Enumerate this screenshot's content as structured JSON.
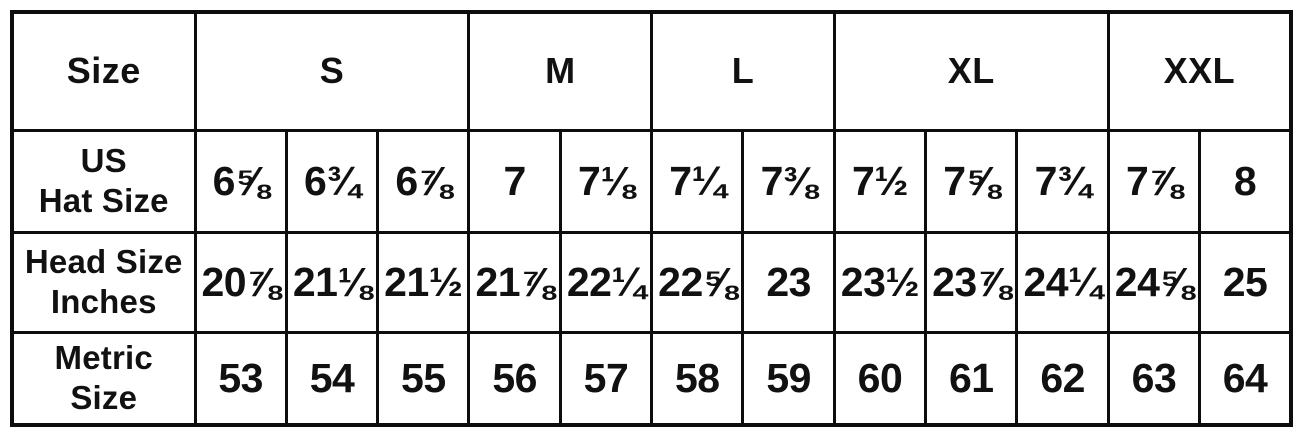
{
  "chart_data": {
    "type": "table",
    "corner_label": "Size",
    "size_groups": [
      {
        "label": "S",
        "span": 3
      },
      {
        "label": "M",
        "span": 2
      },
      {
        "label": "L",
        "span": 2
      },
      {
        "label": "XL",
        "span": 3
      },
      {
        "label": "XXL",
        "span": 2
      }
    ],
    "rows": [
      {
        "label": "US\nHat Size",
        "values": [
          "6⅝",
          "6¾",
          "6⅞",
          "7",
          "7⅛",
          "7¼",
          "7⅜",
          "7½",
          "7⅝",
          "7¾",
          "7⅞",
          "8"
        ]
      },
      {
        "label": "Head Size\nInches",
        "values": [
          "20⅞",
          "21⅛",
          "21½",
          "21⅞",
          "22¼",
          "22⅝",
          "23",
          "23½",
          "23⅞",
          "24¼",
          "24⅝",
          "25"
        ]
      },
      {
        "label": "Metric\nSize",
        "values": [
          "53",
          "54",
          "55",
          "56",
          "57",
          "58",
          "59",
          "60",
          "61",
          "62",
          "63",
          "64"
        ]
      }
    ],
    "layout": {
      "columns_per_group": [
        3,
        2,
        2,
        3,
        2
      ],
      "grid": "on"
    },
    "colors": {
      "border": "#0d0d0d",
      "text": "#111111",
      "background": "#ffffff"
    }
  }
}
